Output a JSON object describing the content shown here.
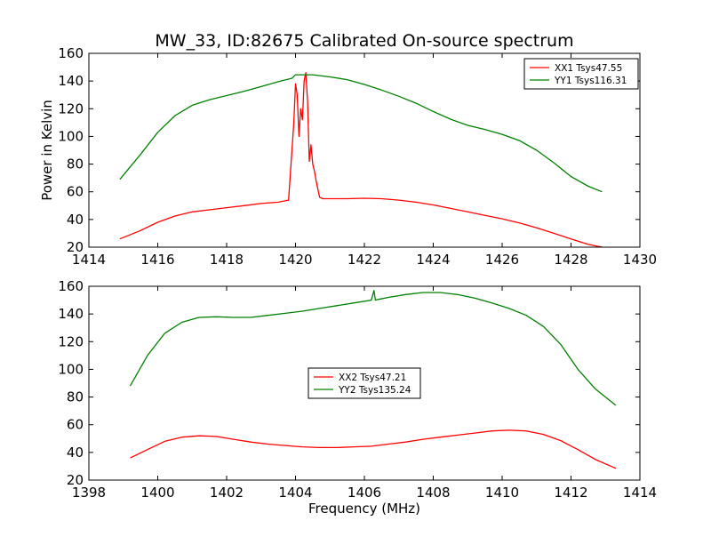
{
  "chart_data": [
    {
      "type": "line",
      "title": "MW_33, ID:82675 Calibrated On-source spectrum",
      "ylabel": "Power in Kelvin",
      "xlabel": "",
      "xlim": [
        1414,
        1430
      ],
      "ylim": [
        20,
        160
      ],
      "xticks": [
        "1414",
        "1416",
        "1418",
        "1420",
        "1422",
        "1424",
        "1426",
        "1428",
        "1430"
      ],
      "yticks": [
        "20",
        "40",
        "60",
        "80",
        "100",
        "120",
        "140",
        "160"
      ],
      "grid": false,
      "legend_position": "upper right",
      "series": [
        {
          "name": "XX1 Tsys47.55",
          "color": "#ff0000",
          "x": [
            1414.9,
            1415.5,
            1416.0,
            1416.5,
            1417.0,
            1417.5,
            1418.0,
            1418.5,
            1419.0,
            1419.5,
            1419.8,
            1419.95,
            1420.0,
            1420.05,
            1420.1,
            1420.15,
            1420.2,
            1420.25,
            1420.3,
            1420.35,
            1420.4,
            1420.45,
            1420.5,
            1420.55,
            1420.6,
            1420.7,
            1420.8,
            1421.0,
            1421.5,
            1422.0,
            1422.5,
            1423.0,
            1423.5,
            1424.0,
            1424.5,
            1425.0,
            1425.5,
            1426.0,
            1426.5,
            1427.0,
            1427.5,
            1428.0,
            1428.5,
            1428.9
          ],
          "y": [
            26,
            32,
            38,
            42.5,
            45.5,
            47,
            48.5,
            50,
            51.5,
            52.5,
            54,
            110,
            138,
            130,
            100,
            120,
            112,
            140,
            146,
            125,
            82,
            94,
            80,
            75,
            68,
            56,
            55,
            55,
            55,
            55.3,
            55,
            54,
            52.5,
            50.5,
            48,
            45.5,
            43,
            40.5,
            37.5,
            34,
            30,
            26,
            22,
            20
          ]
        },
        {
          "name": "YY1 Tsys116.31",
          "color": "#008000",
          "x": [
            1414.9,
            1415.5,
            1416.0,
            1416.5,
            1417.0,
            1417.5,
            1418.0,
            1418.5,
            1419.0,
            1419.5,
            1419.9,
            1420.0,
            1420.5,
            1421.0,
            1421.5,
            1422.0,
            1422.5,
            1423.0,
            1423.5,
            1424.0,
            1424.5,
            1425.0,
            1425.5,
            1426.0,
            1426.5,
            1427.0,
            1427.5,
            1428.0,
            1428.5,
            1428.9
          ],
          "y": [
            69,
            87,
            103,
            115,
            122.5,
            126.5,
            129.5,
            132.5,
            136,
            139.5,
            142,
            144.5,
            144.5,
            143,
            141,
            137.5,
            133.5,
            129,
            124,
            118,
            112.5,
            108,
            105,
            101.5,
            97,
            90,
            81,
            71,
            64,
            60
          ]
        }
      ]
    },
    {
      "type": "line",
      "title": "",
      "ylabel": "",
      "xlabel": "Frequency (MHz)",
      "xlim": [
        1398,
        1414
      ],
      "ylim": [
        20,
        160
      ],
      "xticks": [
        "1398",
        "1400",
        "1402",
        "1404",
        "1406",
        "1408",
        "1410",
        "1412",
        "1414"
      ],
      "yticks": [
        "20",
        "40",
        "60",
        "80",
        "100",
        "120",
        "140",
        "160"
      ],
      "grid": false,
      "legend_position": "center",
      "series": [
        {
          "name": "XX2 Tsys47.21",
          "color": "#ff0000",
          "x": [
            1399.2,
            1399.7,
            1400.2,
            1400.7,
            1401.2,
            1401.7,
            1402.2,
            1402.7,
            1403.2,
            1403.7,
            1404.2,
            1404.7,
            1405.2,
            1405.7,
            1406.2,
            1406.7,
            1407.2,
            1407.7,
            1408.2,
            1408.7,
            1409.2,
            1409.7,
            1410.2,
            1410.7,
            1411.2,
            1411.7,
            1412.2,
            1412.7,
            1413.3
          ],
          "y": [
            36,
            42,
            48,
            51,
            52,
            51.5,
            49.5,
            47.5,
            46,
            45,
            44,
            43.5,
            43.5,
            44,
            44.5,
            46,
            47.5,
            49.5,
            51,
            52.5,
            54,
            55.5,
            56,
            55.5,
            53,
            48.5,
            42,
            35,
            28.5
          ]
        },
        {
          "name": "YY2 Tsys135.24",
          "color": "#008000",
          "x": [
            1399.2,
            1399.7,
            1400.2,
            1400.7,
            1401.2,
            1401.7,
            1402.2,
            1402.7,
            1403.2,
            1403.7,
            1404.2,
            1404.7,
            1405.2,
            1405.7,
            1406.2,
            1406.28,
            1406.32,
            1406.4,
            1406.7,
            1407.2,
            1407.7,
            1408.2,
            1408.7,
            1409.2,
            1409.7,
            1410.2,
            1410.7,
            1411.2,
            1411.7,
            1412.2,
            1412.7,
            1413.3
          ],
          "y": [
            88,
            110,
            126,
            134,
            137.5,
            138,
            137.5,
            137.5,
            139,
            140.5,
            142,
            144,
            146,
            148,
            150,
            157,
            150,
            150.5,
            152,
            154,
            155.5,
            155.5,
            154,
            151.5,
            148,
            144,
            139,
            131,
            118,
            100,
            86,
            74
          ]
        }
      ]
    }
  ]
}
